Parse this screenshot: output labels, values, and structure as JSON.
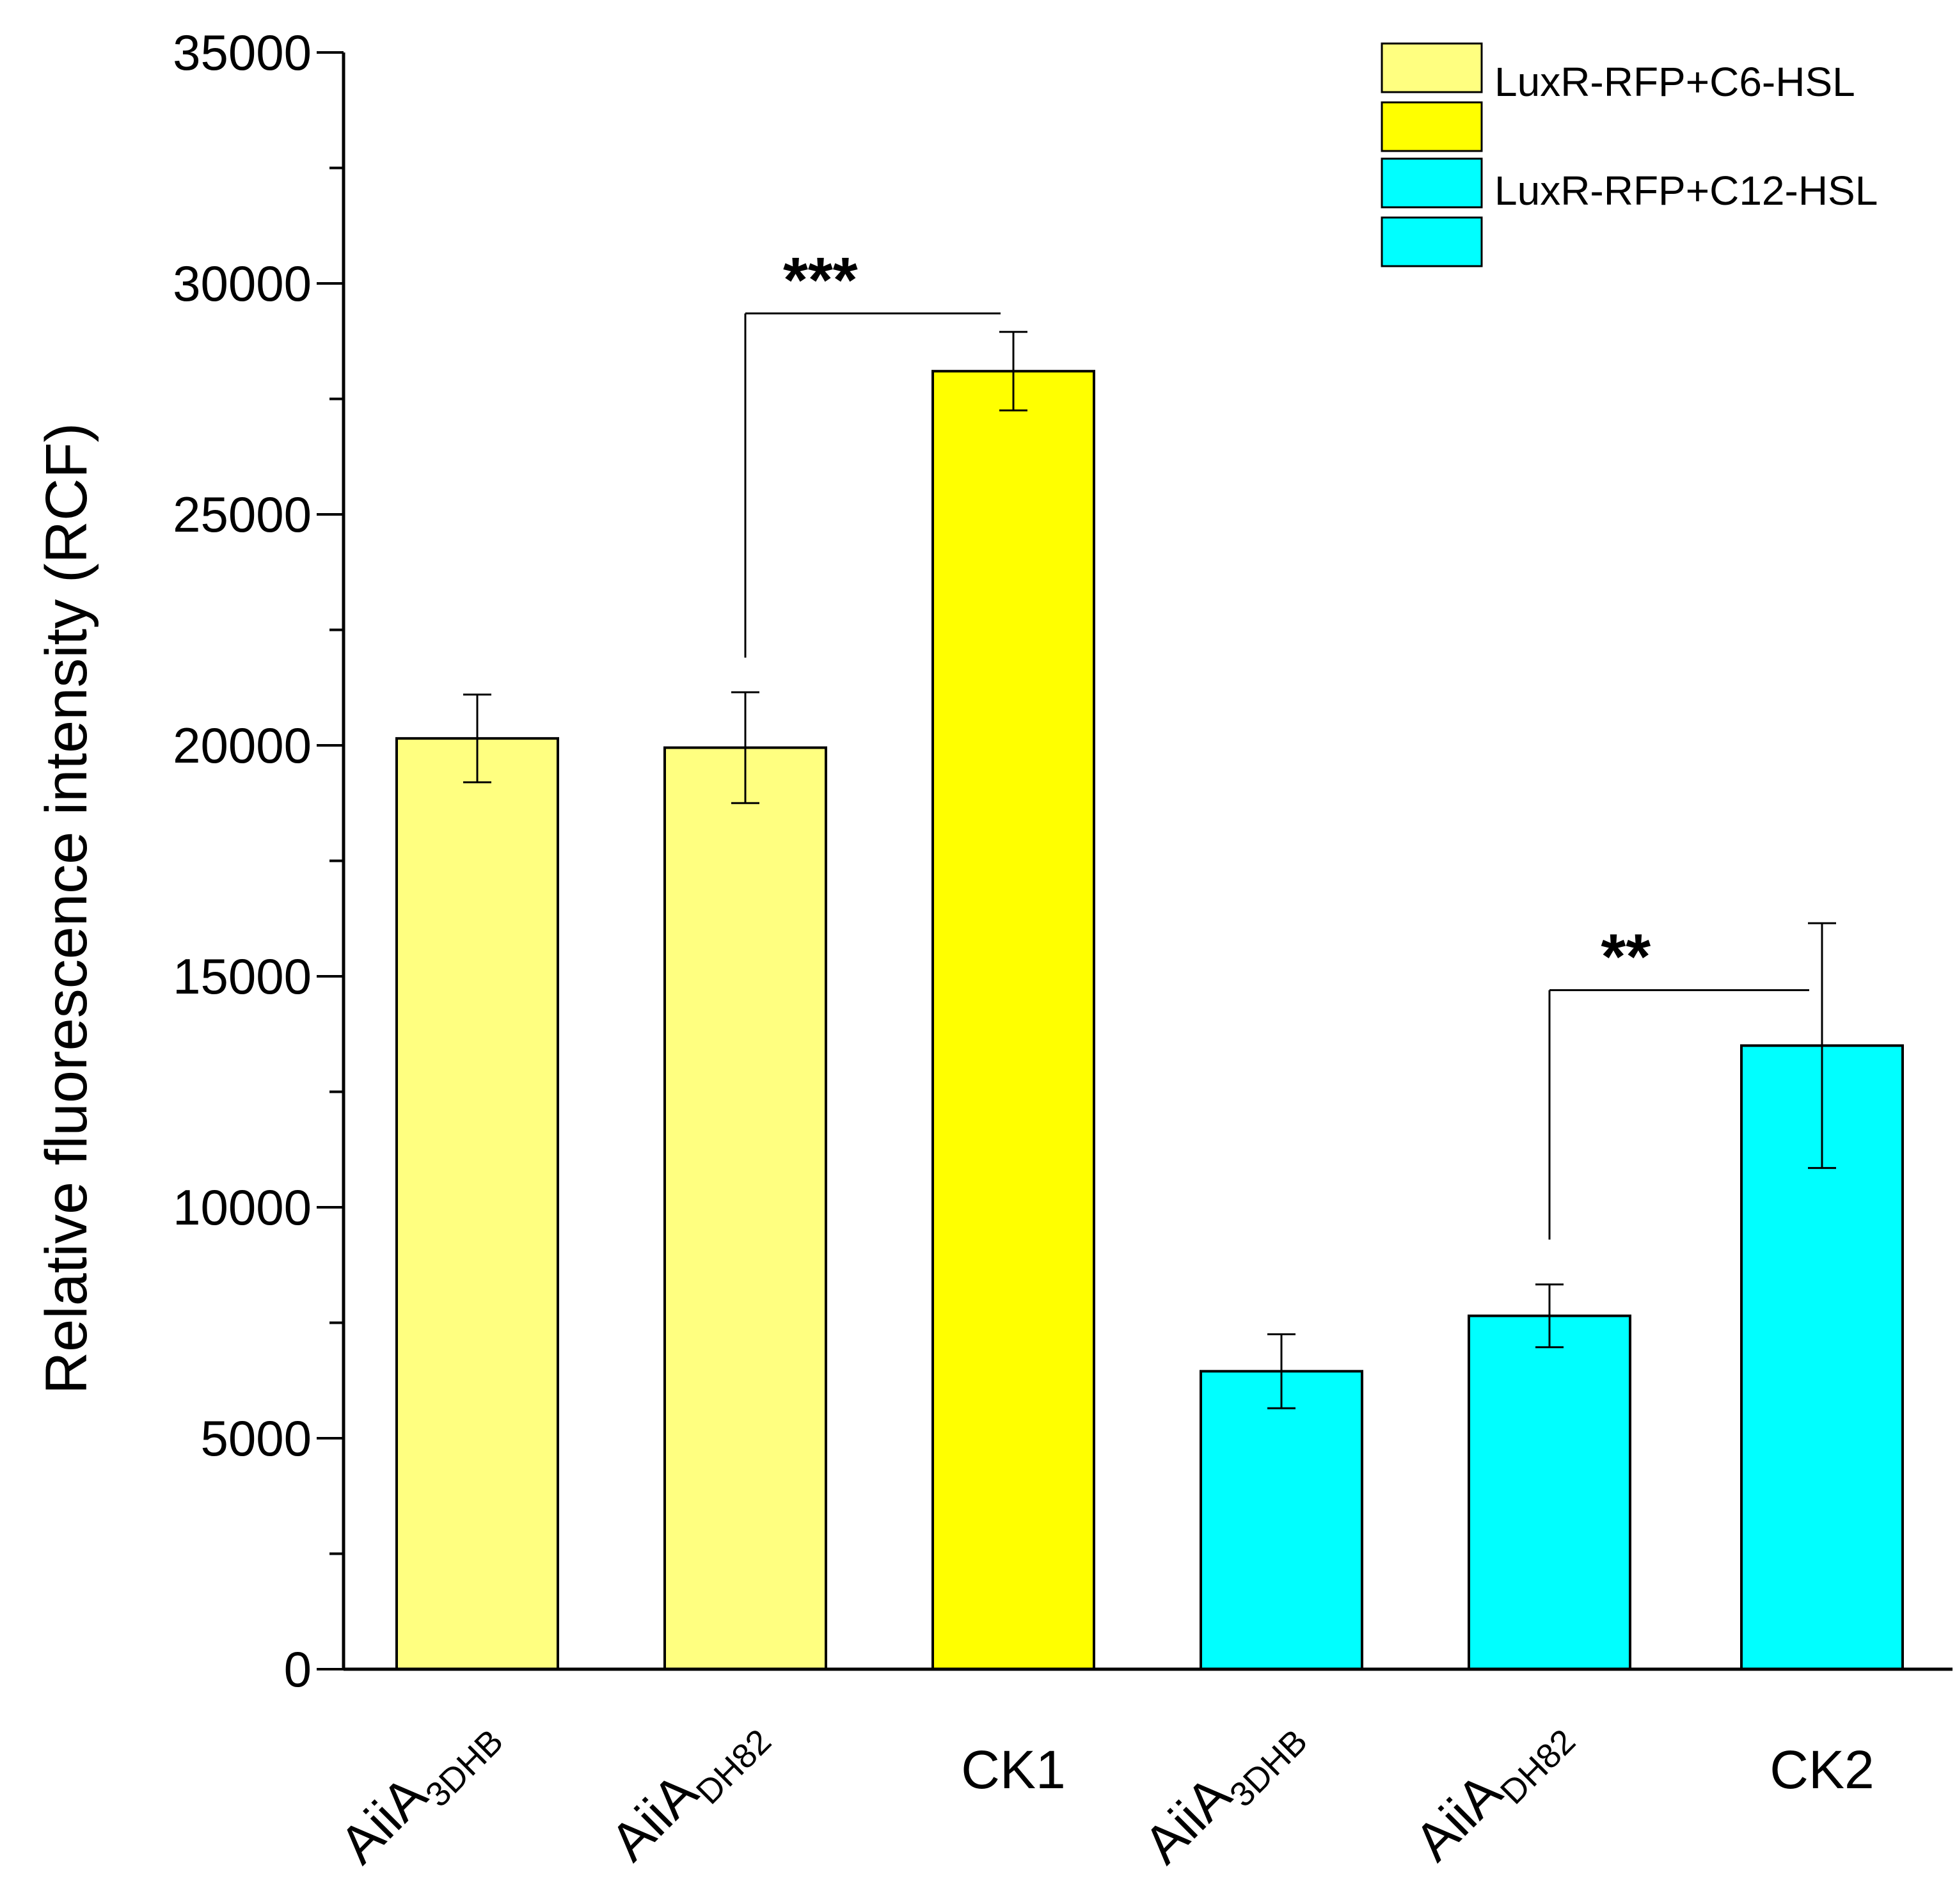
{
  "chart_data": {
    "type": "bar",
    "title": "",
    "xlabel": "",
    "ylabel": "Relative fluorescence intensity (RCF)",
    "ylim": [
      0,
      35000
    ],
    "yticks": [
      0,
      5000,
      10000,
      15000,
      20000,
      25000,
      30000,
      35000
    ],
    "yminor_step": 2500,
    "grid": false,
    "legend_position": "top-right",
    "categories": [
      {
        "main": "AiiA",
        "sub": "3DHB",
        "rotated": true,
        "series": 0
      },
      {
        "main": "AiiA",
        "sub": "DH82",
        "rotated": true,
        "series": 0
      },
      {
        "main": "CK1",
        "sub": "",
        "rotated": false,
        "series": 0
      },
      {
        "main": "AiiA",
        "sub": "3DHB",
        "rotated": true,
        "series": 1
      },
      {
        "main": "AiiA",
        "sub": "DH82",
        "rotated": true,
        "series": 1
      },
      {
        "main": "CK2",
        "sub": "",
        "rotated": false,
        "series": 1
      }
    ],
    "values": [
      20150,
      19950,
      28100,
      6450,
      7650,
      13500
    ],
    "errors": [
      950,
      1200,
      850,
      800,
      680,
      2650
    ],
    "bar_colors": [
      "#ffff80",
      "#ffff80",
      "#ffff00",
      "#00ffff",
      "#00ffff",
      "#00ffff"
    ],
    "series": [
      {
        "name": "LuxR-RFP+C6-HSL",
        "swatches": [
          "#ffff80",
          "#ffff00"
        ]
      },
      {
        "name": "LuxR-RFP+C12-HSL",
        "swatches": [
          "#00ffff",
          "#00ffff"
        ]
      }
    ],
    "significance": [
      {
        "from": 1,
        "to": 2,
        "label": "***",
        "line_y": 29350,
        "left_drop_to": 21900
      },
      {
        "from": 4,
        "to": 5,
        "label": "**",
        "line_y": 14700,
        "left_drop_to": 9300
      }
    ]
  }
}
